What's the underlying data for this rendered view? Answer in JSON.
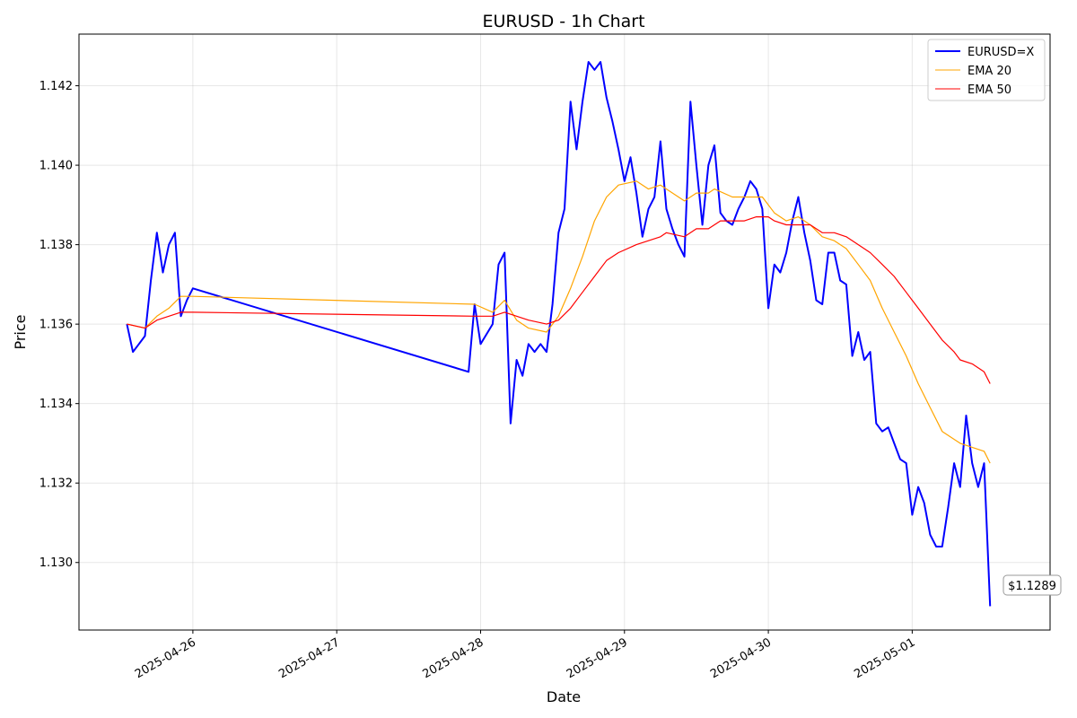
{
  "chart_data": {
    "type": "line",
    "title": "EURUSD - 1h Chart",
    "xlabel": "Date",
    "ylabel": "Price",
    "ylim": [
      1.1283,
      1.1433
    ],
    "xlim": [
      "2025-04-25T05:00",
      "2025-05-01T23:00"
    ],
    "yticks": [
      "1.130",
      "1.132",
      "1.134",
      "1.136",
      "1.138",
      "1.140",
      "1.142"
    ],
    "xticks": [
      "2025-04-26",
      "2025-04-27",
      "2025-04-28",
      "2025-04-29",
      "2025-04-30",
      "2025-05-01"
    ],
    "grid": true,
    "legend_position": "top-right",
    "annotation": "$1.1289",
    "series": [
      {
        "name": "EURUSD=X",
        "color": "#0000ff",
        "points": [
          [
            "2025-04-25T13:00",
            1.136
          ],
          [
            "2025-04-25T14:00",
            1.1353
          ],
          [
            "2025-04-25T15:00",
            1.1355
          ],
          [
            "2025-04-25T16:00",
            1.1357
          ],
          [
            "2025-04-25T17:00",
            1.1371
          ],
          [
            "2025-04-25T18:00",
            1.1383
          ],
          [
            "2025-04-25T19:00",
            1.1373
          ],
          [
            "2025-04-25T20:00",
            1.138
          ],
          [
            "2025-04-25T21:00",
            1.1383
          ],
          [
            "2025-04-25T22:00",
            1.1362
          ],
          [
            "2025-04-25T23:00",
            1.1366
          ],
          [
            "2025-04-26T00:00",
            1.1369
          ],
          [
            "2025-04-27T22:00",
            1.1348
          ],
          [
            "2025-04-27T23:00",
            1.1365
          ],
          [
            "2025-04-28T00:00",
            1.1355
          ],
          [
            "2025-04-28T02:00",
            1.136
          ],
          [
            "2025-04-28T03:00",
            1.1375
          ],
          [
            "2025-04-28T04:00",
            1.1378
          ],
          [
            "2025-04-28T05:00",
            1.1335
          ],
          [
            "2025-04-28T06:00",
            1.1351
          ],
          [
            "2025-04-28T07:00",
            1.1347
          ],
          [
            "2025-04-28T08:00",
            1.1355
          ],
          [
            "2025-04-28T09:00",
            1.1353
          ],
          [
            "2025-04-28T10:00",
            1.1355
          ],
          [
            "2025-04-28T11:00",
            1.1353
          ],
          [
            "2025-04-28T12:00",
            1.1365
          ],
          [
            "2025-04-28T13:00",
            1.1383
          ],
          [
            "2025-04-28T14:00",
            1.1389
          ],
          [
            "2025-04-28T15:00",
            1.1416
          ],
          [
            "2025-04-28T16:00",
            1.1404
          ],
          [
            "2025-04-28T17:00",
            1.1416
          ],
          [
            "2025-04-28T18:00",
            1.1426
          ],
          [
            "2025-04-28T19:00",
            1.1424
          ],
          [
            "2025-04-28T20:00",
            1.1426
          ],
          [
            "2025-04-28T21:00",
            1.1417
          ],
          [
            "2025-04-28T22:00",
            1.1411
          ],
          [
            "2025-04-28T23:00",
            1.1404
          ],
          [
            "2025-04-29T00:00",
            1.1396
          ],
          [
            "2025-04-29T01:00",
            1.1402
          ],
          [
            "2025-04-29T02:00",
            1.1393
          ],
          [
            "2025-04-29T03:00",
            1.1382
          ],
          [
            "2025-04-29T04:00",
            1.1389
          ],
          [
            "2025-04-29T05:00",
            1.1392
          ],
          [
            "2025-04-29T06:00",
            1.1406
          ],
          [
            "2025-04-29T07:00",
            1.1389
          ],
          [
            "2025-04-29T08:00",
            1.1384
          ],
          [
            "2025-04-29T09:00",
            1.138
          ],
          [
            "2025-04-29T10:00",
            1.1377
          ],
          [
            "2025-04-29T11:00",
            1.1416
          ],
          [
            "2025-04-29T12:00",
            1.14
          ],
          [
            "2025-04-29T13:00",
            1.1385
          ],
          [
            "2025-04-29T14:00",
            1.14
          ],
          [
            "2025-04-29T15:00",
            1.1405
          ],
          [
            "2025-04-29T16:00",
            1.1388
          ],
          [
            "2025-04-29T17:00",
            1.1386
          ],
          [
            "2025-04-29T18:00",
            1.1385
          ],
          [
            "2025-04-29T19:00",
            1.1389
          ],
          [
            "2025-04-29T20:00",
            1.1392
          ],
          [
            "2025-04-29T21:00",
            1.1396
          ],
          [
            "2025-04-29T22:00",
            1.1394
          ],
          [
            "2025-04-29T23:00",
            1.1389
          ],
          [
            "2025-04-30T00:00",
            1.1364
          ],
          [
            "2025-04-30T01:00",
            1.1375
          ],
          [
            "2025-04-30T02:00",
            1.1373
          ],
          [
            "2025-04-30T03:00",
            1.1378
          ],
          [
            "2025-04-30T04:00",
            1.1386
          ],
          [
            "2025-04-30T05:00",
            1.1392
          ],
          [
            "2025-04-30T06:00",
            1.1383
          ],
          [
            "2025-04-30T07:00",
            1.1376
          ],
          [
            "2025-04-30T08:00",
            1.1366
          ],
          [
            "2025-04-30T09:00",
            1.1365
          ],
          [
            "2025-04-30T10:00",
            1.1378
          ],
          [
            "2025-04-30T11:00",
            1.1378
          ],
          [
            "2025-04-30T12:00",
            1.1371
          ],
          [
            "2025-04-30T13:00",
            1.137
          ],
          [
            "2025-04-30T14:00",
            1.1352
          ],
          [
            "2025-04-30T15:00",
            1.1358
          ],
          [
            "2025-04-30T16:00",
            1.1351
          ],
          [
            "2025-04-30T17:00",
            1.1353
          ],
          [
            "2025-04-30T18:00",
            1.1335
          ],
          [
            "2025-04-30T19:00",
            1.1333
          ],
          [
            "2025-04-30T20:00",
            1.1334
          ],
          [
            "2025-04-30T21:00",
            1.133
          ],
          [
            "2025-04-30T22:00",
            1.1326
          ],
          [
            "2025-04-30T23:00",
            1.1325
          ],
          [
            "2025-05-01T00:00",
            1.1312
          ],
          [
            "2025-05-01T01:00",
            1.1319
          ],
          [
            "2025-05-01T02:00",
            1.1315
          ],
          [
            "2025-05-01T03:00",
            1.1307
          ],
          [
            "2025-05-01T04:00",
            1.1304
          ],
          [
            "2025-05-01T05:00",
            1.1304
          ],
          [
            "2025-05-01T06:00",
            1.1314
          ],
          [
            "2025-05-01T07:00",
            1.1325
          ],
          [
            "2025-05-01T08:00",
            1.1319
          ],
          [
            "2025-05-01T09:00",
            1.1337
          ],
          [
            "2025-05-01T10:00",
            1.1325
          ],
          [
            "2025-05-01T11:00",
            1.1319
          ],
          [
            "2025-05-01T12:00",
            1.1325
          ],
          [
            "2025-05-01T13:00",
            1.1289
          ]
        ]
      },
      {
        "name": "EMA 20",
        "color": "#ffa500",
        "points": [
          [
            "2025-04-25T13:00",
            1.136
          ],
          [
            "2025-04-25T16:00",
            1.1359
          ],
          [
            "2025-04-25T18:00",
            1.1362
          ],
          [
            "2025-04-25T20:00",
            1.1364
          ],
          [
            "2025-04-25T22:00",
            1.1367
          ],
          [
            "2025-04-26T00:00",
            1.1367
          ],
          [
            "2025-04-27T23:00",
            1.1365
          ],
          [
            "2025-04-28T02:00",
            1.1363
          ],
          [
            "2025-04-28T04:00",
            1.1366
          ],
          [
            "2025-04-28T06:00",
            1.1361
          ],
          [
            "2025-04-28T08:00",
            1.1359
          ],
          [
            "2025-04-28T11:00",
            1.1358
          ],
          [
            "2025-04-28T13:00",
            1.1362
          ],
          [
            "2025-04-28T15:00",
            1.1369
          ],
          [
            "2025-04-28T17:00",
            1.1377
          ],
          [
            "2025-04-28T19:00",
            1.1386
          ],
          [
            "2025-04-28T21:00",
            1.1392
          ],
          [
            "2025-04-28T23:00",
            1.1395
          ],
          [
            "2025-04-29T02:00",
            1.1396
          ],
          [
            "2025-04-29T04:00",
            1.1394
          ],
          [
            "2025-04-29T06:00",
            1.1395
          ],
          [
            "2025-04-29T10:00",
            1.1391
          ],
          [
            "2025-04-29T12:00",
            1.1393
          ],
          [
            "2025-04-29T14:00",
            1.1393
          ],
          [
            "2025-04-29T15:00",
            1.1394
          ],
          [
            "2025-04-29T18:00",
            1.1392
          ],
          [
            "2025-04-29T20:00",
            1.1392
          ],
          [
            "2025-04-29T23:00",
            1.1392
          ],
          [
            "2025-04-30T01:00",
            1.1388
          ],
          [
            "2025-04-30T03:00",
            1.1386
          ],
          [
            "2025-04-30T05:00",
            1.1387
          ],
          [
            "2025-04-30T07:00",
            1.1385
          ],
          [
            "2025-04-30T09:00",
            1.1382
          ],
          [
            "2025-04-30T11:00",
            1.1381
          ],
          [
            "2025-04-30T13:00",
            1.1379
          ],
          [
            "2025-04-30T15:00",
            1.1375
          ],
          [
            "2025-04-30T17:00",
            1.1371
          ],
          [
            "2025-04-30T19:00",
            1.1364
          ],
          [
            "2025-04-30T21:00",
            1.1358
          ],
          [
            "2025-04-30T23:00",
            1.1352
          ],
          [
            "2025-05-01T01:00",
            1.1345
          ],
          [
            "2025-05-01T03:00",
            1.1339
          ],
          [
            "2025-05-01T05:00",
            1.1333
          ],
          [
            "2025-05-01T07:00",
            1.1331
          ],
          [
            "2025-05-01T08:00",
            1.133
          ],
          [
            "2025-05-01T10:00",
            1.1329
          ],
          [
            "2025-05-01T12:00",
            1.1328
          ],
          [
            "2025-05-01T13:00",
            1.1325
          ]
        ]
      },
      {
        "name": "EMA 50",
        "color": "#ff0000",
        "points": [
          [
            "2025-04-25T13:00",
            1.136
          ],
          [
            "2025-04-25T16:00",
            1.1359
          ],
          [
            "2025-04-25T18:00",
            1.1361
          ],
          [
            "2025-04-25T20:00",
            1.1362
          ],
          [
            "2025-04-25T22:00",
            1.1363
          ],
          [
            "2025-04-26T00:00",
            1.1363
          ],
          [
            "2025-04-27T23:00",
            1.1362
          ],
          [
            "2025-04-28T02:00",
            1.1362
          ],
          [
            "2025-04-28T04:00",
            1.1363
          ],
          [
            "2025-04-28T06:00",
            1.1362
          ],
          [
            "2025-04-28T08:00",
            1.1361
          ],
          [
            "2025-04-28T11:00",
            1.136
          ],
          [
            "2025-04-28T13:00",
            1.1361
          ],
          [
            "2025-04-28T15:00",
            1.1364
          ],
          [
            "2025-04-28T17:00",
            1.1368
          ],
          [
            "2025-04-28T19:00",
            1.1372
          ],
          [
            "2025-04-28T21:00",
            1.1376
          ],
          [
            "2025-04-28T23:00",
            1.1378
          ],
          [
            "2025-04-29T02:00",
            1.138
          ],
          [
            "2025-04-29T04:00",
            1.1381
          ],
          [
            "2025-04-29T06:00",
            1.1382
          ],
          [
            "2025-04-29T07:00",
            1.1383
          ],
          [
            "2025-04-29T10:00",
            1.1382
          ],
          [
            "2025-04-29T12:00",
            1.1384
          ],
          [
            "2025-04-29T14:00",
            1.1384
          ],
          [
            "2025-04-29T16:00",
            1.1386
          ],
          [
            "2025-04-29T18:00",
            1.1386
          ],
          [
            "2025-04-29T20:00",
            1.1386
          ],
          [
            "2025-04-29T22:00",
            1.1387
          ],
          [
            "2025-04-30T00:00",
            1.1387
          ],
          [
            "2025-04-30T01:00",
            1.1386
          ],
          [
            "2025-04-30T03:00",
            1.1385
          ],
          [
            "2025-04-30T05:00",
            1.1385
          ],
          [
            "2025-04-30T07:00",
            1.1385
          ],
          [
            "2025-04-30T09:00",
            1.1383
          ],
          [
            "2025-04-30T11:00",
            1.1383
          ],
          [
            "2025-04-30T13:00",
            1.1382
          ],
          [
            "2025-04-30T15:00",
            1.138
          ],
          [
            "2025-04-30T17:00",
            1.1378
          ],
          [
            "2025-04-30T19:00",
            1.1375
          ],
          [
            "2025-04-30T21:00",
            1.1372
          ],
          [
            "2025-04-30T23:00",
            1.1368
          ],
          [
            "2025-05-01T01:00",
            1.1364
          ],
          [
            "2025-05-01T03:00",
            1.136
          ],
          [
            "2025-05-01T05:00",
            1.1356
          ],
          [
            "2025-05-01T07:00",
            1.1353
          ],
          [
            "2025-05-01T08:00",
            1.1351
          ],
          [
            "2025-05-01T10:00",
            1.135
          ],
          [
            "2025-05-01T12:00",
            1.1348
          ],
          [
            "2025-05-01T13:00",
            1.1345
          ]
        ]
      }
    ]
  }
}
